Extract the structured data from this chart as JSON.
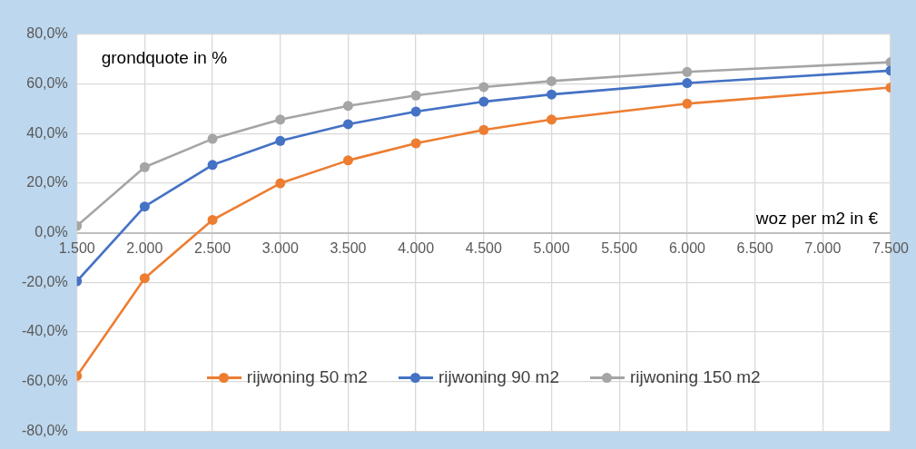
{
  "chart_data": {
    "type": "line",
    "xlabel": "woz per m2 in €",
    "ylabel": "grondquote in %",
    "x": [
      1500,
      2000,
      2500,
      3000,
      3500,
      4000,
      4500,
      5000,
      6000,
      7500
    ],
    "series": [
      {
        "name": "rijwoning 50 m2",
        "color": "#ed7d31",
        "values": [
          -57.7,
          -18.3,
          5.2,
          20.0,
          29.2,
          36.1,
          41.5,
          45.7,
          52.1,
          58.6
        ]
      },
      {
        "name": "rijwoning 90 m2",
        "color": "#4472c4",
        "values": [
          -19.5,
          10.6,
          27.4,
          37.1,
          43.8,
          48.9,
          52.9,
          55.8,
          60.4,
          65.4
        ]
      },
      {
        "name": "rijwoning 150 m2",
        "color": "#a5a5a5",
        "values": [
          2.8,
          26.5,
          37.9,
          45.7,
          51.2,
          55.4,
          58.8,
          61.2,
          64.9,
          68.8
        ]
      }
    ],
    "xlim": [
      1500,
      7500
    ],
    "xticks": [
      {
        "value": 1500,
        "label": "1.500"
      },
      {
        "value": 2000,
        "label": "2.000"
      },
      {
        "value": 2500,
        "label": "2.500"
      },
      {
        "value": 3000,
        "label": "3.000"
      },
      {
        "value": 3500,
        "label": "3.500"
      },
      {
        "value": 4000,
        "label": "4.000"
      },
      {
        "value": 4500,
        "label": "4.500"
      },
      {
        "value": 5000,
        "label": "5.000"
      },
      {
        "value": 5500,
        "label": "5.500"
      },
      {
        "value": 6000,
        "label": "6.000"
      },
      {
        "value": 6500,
        "label": "6.500"
      },
      {
        "value": 7000,
        "label": "7.000"
      },
      {
        "value": 7500,
        "label": "7.500"
      }
    ],
    "ylim": [
      -80,
      80
    ],
    "yticks": [
      {
        "value": -80,
        "label": "-80,0%"
      },
      {
        "value": -60,
        "label": "-60,0%"
      },
      {
        "value": -40,
        "label": "-40,0%"
      },
      {
        "value": -20,
        "label": "-20,0%"
      },
      {
        "value": 0,
        "label": "0,0%"
      },
      {
        "value": 20,
        "label": "20,0%"
      },
      {
        "value": 40,
        "label": "40,0%"
      },
      {
        "value": 60,
        "label": "60,0%"
      },
      {
        "value": 80,
        "label": "80,0%"
      }
    ],
    "grid": true,
    "legend": "bottom",
    "marker": "circle",
    "line_style": "solid"
  }
}
